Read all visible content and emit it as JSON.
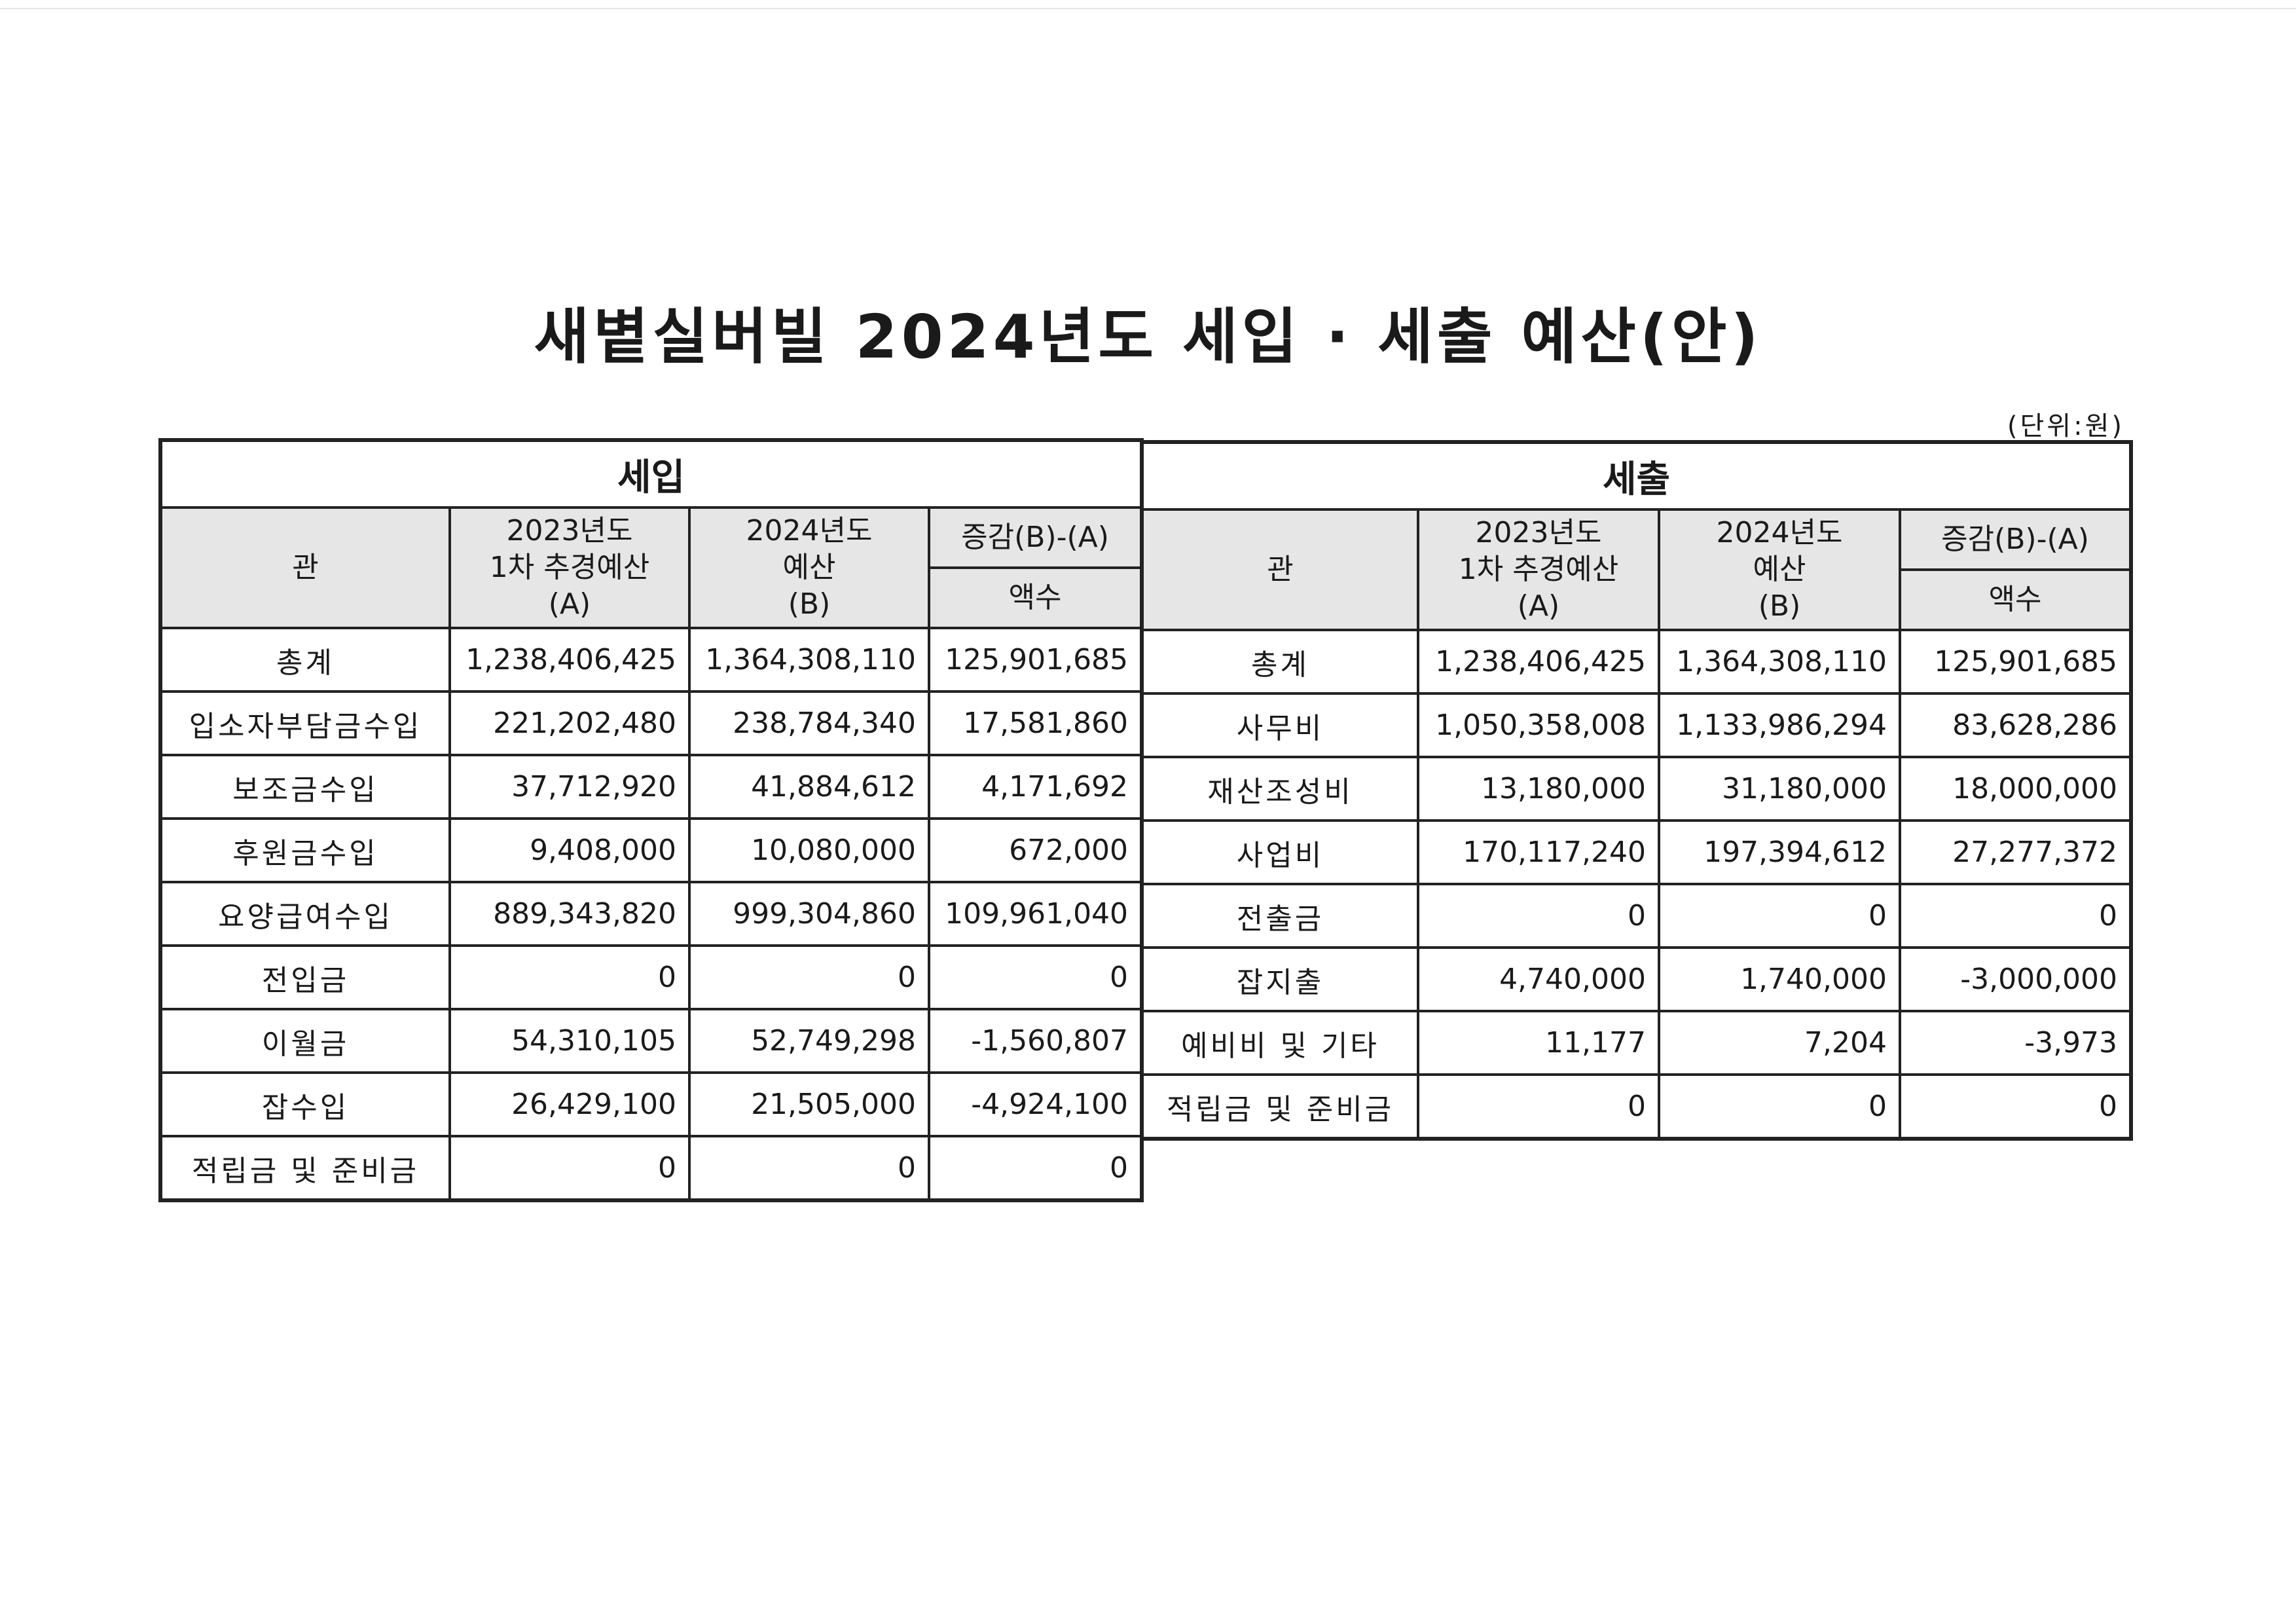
{
  "title": "새볕실버빌 2024년도 세입 · 세출 예산(안)",
  "unit": "(단위:원)",
  "headers": {
    "category": "관",
    "col_a": [
      "2023년도",
      "1차 추경예산",
      "(A)"
    ],
    "col_b": [
      "2024년도",
      "예산",
      "(B)"
    ],
    "diff": "증감(B)-(A)",
    "diff_sub": "액수"
  },
  "revenue": {
    "title": "세입",
    "rows": [
      {
        "name": "총계",
        "a": "1,238,406,425",
        "b": "1,364,308,110",
        "d": "125,901,685"
      },
      {
        "name": "입소자부담금수입",
        "a": "221,202,480",
        "b": "238,784,340",
        "d": "17,581,860"
      },
      {
        "name": "보조금수입",
        "a": "37,712,920",
        "b": "41,884,612",
        "d": "4,171,692"
      },
      {
        "name": "후원금수입",
        "a": "9,408,000",
        "b": "10,080,000",
        "d": "672,000"
      },
      {
        "name": "요양급여수입",
        "a": "889,343,820",
        "b": "999,304,860",
        "d": "109,961,040"
      },
      {
        "name": "전입금",
        "a": "0",
        "b": "0",
        "d": "0"
      },
      {
        "name": "이월금",
        "a": "54,310,105",
        "b": "52,749,298",
        "d": "-1,560,807"
      },
      {
        "name": "잡수입",
        "a": "26,429,100",
        "b": "21,505,000",
        "d": "-4,924,100"
      },
      {
        "name": "적립금 및 준비금",
        "a": "0",
        "b": "0",
        "d": "0"
      }
    ]
  },
  "expenditure": {
    "title": "세출",
    "rows": [
      {
        "name": "총계",
        "a": "1,238,406,425",
        "b": "1,364,308,110",
        "d": "125,901,685"
      },
      {
        "name": "사무비",
        "a": "1,050,358,008",
        "b": "1,133,986,294",
        "d": "83,628,286"
      },
      {
        "name": "재산조성비",
        "a": "13,180,000",
        "b": "31,180,000",
        "d": "18,000,000"
      },
      {
        "name": "사업비",
        "a": "170,117,240",
        "b": "197,394,612",
        "d": "27,277,372"
      },
      {
        "name": "전출금",
        "a": "0",
        "b": "0",
        "d": "0"
      },
      {
        "name": "잡지출",
        "a": "4,740,000",
        "b": "1,740,000",
        "d": "-3,000,000"
      },
      {
        "name": "예비비 및 기타",
        "a": "11,177",
        "b": "7,204",
        "d": "-3,973"
      },
      {
        "name": "적립금 및 준비금",
        "a": "0",
        "b": "0",
        "d": "0"
      }
    ]
  }
}
